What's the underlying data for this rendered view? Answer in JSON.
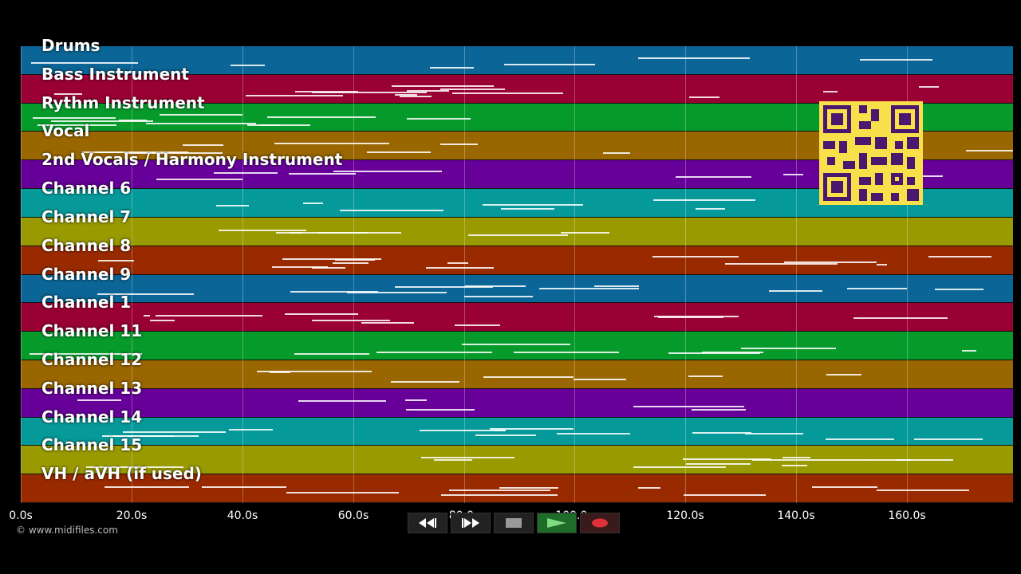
{
  "tracks": [
    {
      "label": "Drums",
      "color": "#0b6596"
    },
    {
      "label": "Bass Instrument",
      "color": "#990033"
    },
    {
      "label": "Rythm Instrument",
      "color": "#069a2a"
    },
    {
      "label": "Vocal",
      "color": "#996600"
    },
    {
      "label": "2nd Vocals / Harmony Instrument",
      "color": "#660099"
    },
    {
      "label": "Channel 6",
      "color": "#069999"
    },
    {
      "label": "Channel 7",
      "color": "#999900"
    },
    {
      "label": "Channel 8",
      "color": "#992a00"
    },
    {
      "label": "Channel 9",
      "color": "#0b6596"
    },
    {
      "label": "Channel 1",
      "color": "#990033"
    },
    {
      "label": "Channel 11",
      "color": "#069a2a"
    },
    {
      "label": "Channel 12",
      "color": "#996600"
    },
    {
      "label": "Channel 13",
      "color": "#660099"
    },
    {
      "label": "Channel 14",
      "color": "#069999"
    },
    {
      "label": "Channel 15",
      "color": "#999900"
    },
    {
      "label": "VH / aVH (if used)",
      "color": "#992a00"
    }
  ],
  "timeline": {
    "ticks": [
      "0.0s",
      "20.0s",
      "40.0s",
      "60.0s",
      "80.0s",
      "100.0s",
      "120.0s",
      "140.0s",
      "160.0s"
    ]
  },
  "controls": {
    "rewind_icon": "rewind-icon",
    "fast_forward_icon": "fast-forward-icon",
    "stop_icon": "stop-icon",
    "play_icon": "play-icon",
    "record_icon": "record-icon"
  },
  "footer": {
    "copyright": "© www.midifiles.com"
  }
}
